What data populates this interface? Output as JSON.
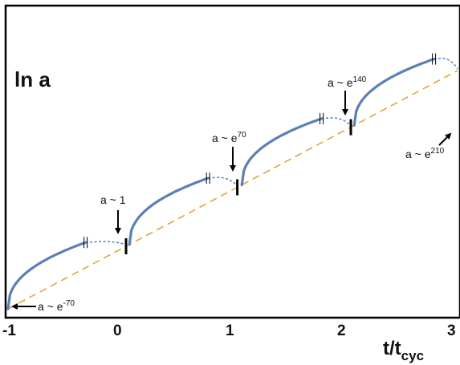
{
  "chart_data": {
    "type": "line",
    "ylabel": "ln a",
    "xlabel_main": "t/t",
    "xlabel_sub": "cyc",
    "xlim": [
      -1,
      3
    ],
    "ylim": [
      -70,
      210
    ],
    "x_ticks": [
      "-1",
      "0",
      "1",
      "2",
      "3"
    ],
    "grid": false,
    "legend": "none",
    "colors": {
      "curve": "#5b7fb6",
      "trend": "#e3a43c",
      "axes": "#000000",
      "marker": "#000000"
    },
    "trend_line": {
      "x": [
        -1,
        3
      ],
      "y": [
        -70,
        210
      ]
    },
    "cycles": [
      {
        "start_x": -1,
        "solid_end_x": -0.31,
        "bounce_x": 0.05,
        "ln_a_start": -70,
        "ln_a_peak": 0
      },
      {
        "start_x": 0.08,
        "solid_end_x": 0.78,
        "bounce_x": 1.04,
        "ln_a_start": 0,
        "ln_a_peak": 70
      },
      {
        "start_x": 1.08,
        "solid_end_x": 1.79,
        "bounce_x": 2.05,
        "ln_a_start": 70,
        "ln_a_peak": 140
      },
      {
        "start_x": 2.08,
        "solid_end_x": 2.79,
        "bounce_x": 3.0,
        "ln_a_start": 140,
        "ln_a_peak": 210
      }
    ],
    "annotations": [
      {
        "base": "a ~ e",
        "sup": "-70"
      },
      {
        "base": "a ~ 1",
        "sup": ""
      },
      {
        "base": "a ~ e",
        "sup": "70"
      },
      {
        "base": "a ~ e",
        "sup": "140"
      },
      {
        "base": "a ~ e",
        "sup": "210"
      }
    ]
  }
}
